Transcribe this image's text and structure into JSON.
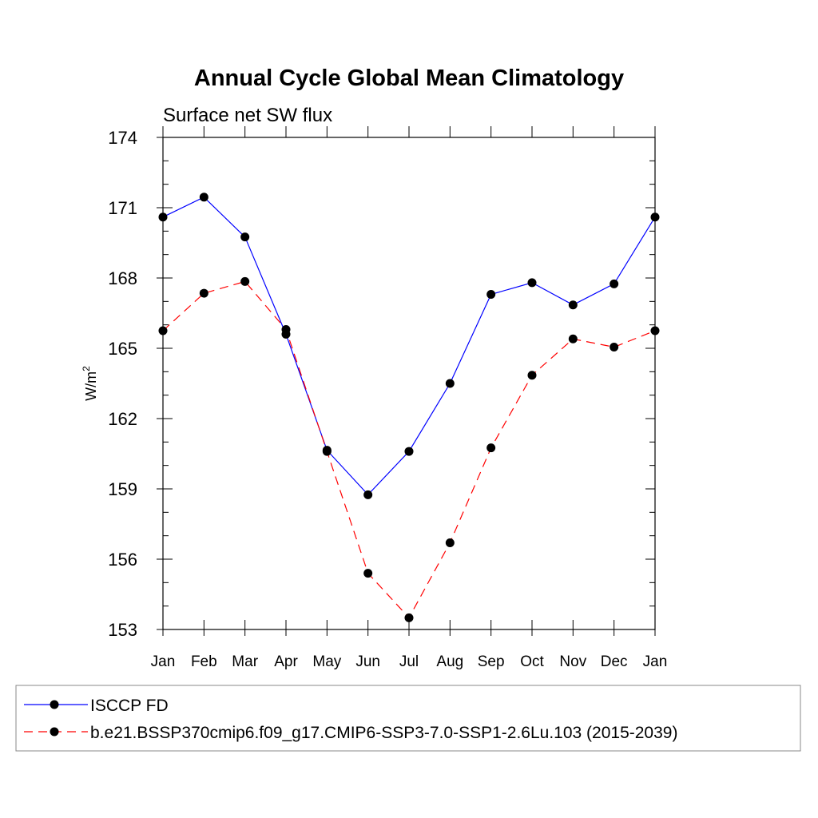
{
  "chart_data": {
    "type": "line",
    "title": "Annual Cycle Global Mean Climatology",
    "subtitle": "Surface net SW flux",
    "ylabel": "W/m",
    "ylabel_superscript": "2",
    "ylim": [
      153,
      174
    ],
    "yticks": [
      153,
      156,
      159,
      162,
      165,
      168,
      171,
      174
    ],
    "categories": [
      "Jan",
      "Feb",
      "Mar",
      "Apr",
      "May",
      "Jun",
      "Jul",
      "Aug",
      "Sep",
      "Oct",
      "Nov",
      "Dec",
      "Jan"
    ],
    "grid": false,
    "legend_position": "bottom",
    "series": [
      {
        "name": "ISCCP FD",
        "color": "#0000ff",
        "line_style": "solid",
        "marker": "filled-circle",
        "values": [
          170.6,
          171.45,
          169.75,
          165.6,
          160.65,
          158.75,
          160.6,
          163.5,
          167.3,
          167.8,
          166.85,
          167.75,
          170.6
        ]
      },
      {
        "name": "b.e21.BSSP370cmip6.f09_g17.CMIP6-SSP3-7.0-SSP1-2.6Lu.103 (2015-2039)",
        "color": "#ff0000",
        "line_style": "dashed",
        "marker": "filled-circle",
        "values": [
          165.75,
          167.35,
          167.85,
          165.8,
          160.6,
          155.4,
          153.5,
          156.7,
          160.75,
          163.85,
          165.4,
          165.05,
          165.75
        ]
      }
    ]
  }
}
